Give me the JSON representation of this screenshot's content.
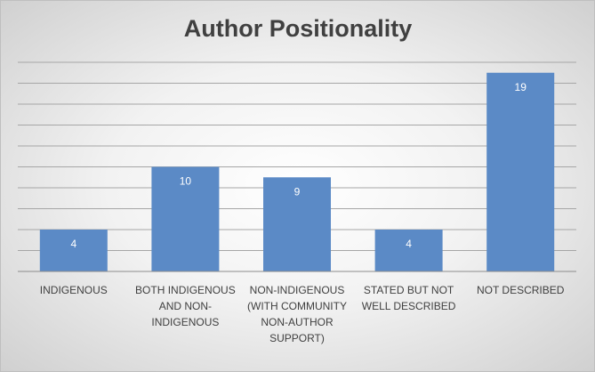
{
  "chart_data": {
    "type": "bar",
    "title": "Author Positionality",
    "categories": [
      "INDIGENOUS",
      "BOTH INDIGENOUS AND NON-INDIGENOUS",
      "NON-INDIGENOUS (WITH COMMUNITY NON-AUTHOR SUPPORT)",
      "STATED BUT NOT WELL DESCRIBED",
      "NOT DESCRIBED"
    ],
    "values": [
      4,
      10,
      9,
      4,
      19
    ],
    "color": "#5b8ac6",
    "ylim": [
      0,
      20
    ],
    "yticks": [
      0,
      2,
      4,
      6,
      8,
      10,
      12,
      14,
      16,
      18,
      20
    ],
    "grid": true
  }
}
